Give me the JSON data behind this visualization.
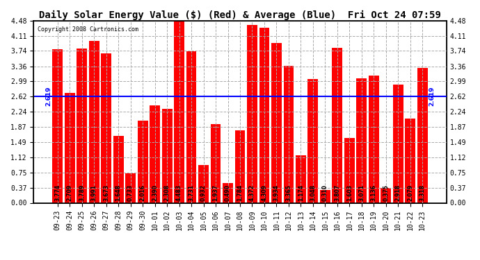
{
  "title": "Daily Solar Energy Value ($) (Red) & Average (Blue)  Fri Oct 24 07:59",
  "copyright": "Copyright 2008 Cartronics.com",
  "categories": [
    "09-23",
    "09-24",
    "09-25",
    "09-26",
    "09-27",
    "09-28",
    "09-29",
    "09-30",
    "10-01",
    "10-02",
    "10-03",
    "10-04",
    "10-05",
    "10-06",
    "10-07",
    "10-08",
    "10-09",
    "10-10",
    "10-11",
    "10-12",
    "10-13",
    "10-14",
    "10-15",
    "10-16",
    "10-17",
    "10-18",
    "10-19",
    "10-20",
    "10-21",
    "10-22",
    "10-23"
  ],
  "values": [
    3.774,
    2.709,
    3.789,
    3.991,
    3.673,
    1.648,
    0.733,
    2.016,
    2.39,
    2.308,
    4.483,
    3.731,
    0.932,
    1.937,
    0.49,
    1.784,
    4.372,
    4.309,
    3.934,
    3.365,
    1.174,
    3.048,
    0.31,
    3.807,
    1.603,
    3.071,
    3.136,
    0.375,
    2.918,
    2.079,
    3.318
  ],
  "average": 2.619,
  "bar_color": "#ff0000",
  "avg_line_color": "#0000ff",
  "background_color": "#ffffff",
  "plot_bg_color": "#ffffff",
  "grid_color": "#aaaaaa",
  "yticks": [
    0.0,
    0.37,
    0.75,
    1.12,
    1.49,
    1.87,
    2.24,
    2.62,
    2.99,
    3.36,
    3.74,
    4.11,
    4.48
  ],
  "ylim": [
    0,
    4.48
  ],
  "title_fontsize": 10,
  "tick_fontsize": 7,
  "value_fontsize": 5.5,
  "avg_label_fontsize": 6.5
}
